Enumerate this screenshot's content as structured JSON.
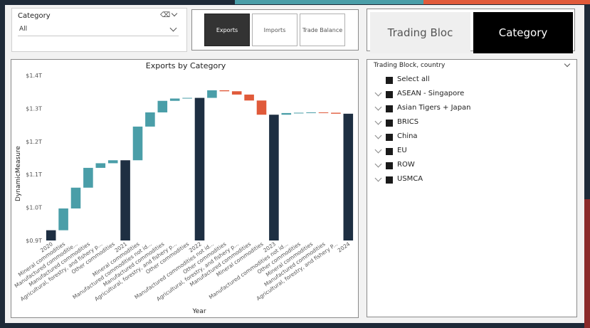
{
  "colors": {
    "total": "#1e2f42",
    "increase": "#4a9ea8",
    "decrease": "#e05a3a",
    "axis_text": "#555555"
  },
  "category_slicer": {
    "title": "Category",
    "value": "All"
  },
  "measure_buttons": [
    {
      "label": "Exports",
      "active": true
    },
    {
      "label": "Imports",
      "active": false
    },
    {
      "label": "Trade Balance",
      "active": false
    }
  ],
  "view_toggle": {
    "left_label": "Trading Bloc",
    "right_label": "Category"
  },
  "trade_tree": {
    "header": "Trading Block, country",
    "items": [
      {
        "label": "Select all",
        "expandable": false
      },
      {
        "label": "ASEAN - Singapore",
        "expandable": true
      },
      {
        "label": "Asian Tigers + Japan",
        "expandable": true
      },
      {
        "label": "BRICS",
        "expandable": true
      },
      {
        "label": "China",
        "expandable": true
      },
      {
        "label": "EU",
        "expandable": true
      },
      {
        "label": "ROW",
        "expandable": true
      },
      {
        "label": "USMCA",
        "expandable": true
      }
    ]
  },
  "chart_data": {
    "type": "bar",
    "subtype": "waterfall",
    "title": "Exports by Category",
    "xlabel": "Year",
    "ylabel": "DynamicMeasure",
    "ylim": [
      0.9,
      1.4
    ],
    "yticks": [
      0.9,
      1.0,
      1.1,
      1.2,
      1.3,
      1.4
    ],
    "ytick_labels": [
      "$0.9T",
      "$1.0T",
      "$1.1T",
      "$1.2T",
      "$1.3T",
      "$1.4T"
    ],
    "bars": [
      {
        "label": "2020",
        "kind": "total",
        "start": 0.9,
        "end": 0.931
      },
      {
        "label": "Mineral commodities",
        "kind": "increase",
        "start": 0.931,
        "end": 0.997
      },
      {
        "label": "Manufactured commoditie...",
        "kind": "increase",
        "start": 0.997,
        "end": 1.06
      },
      {
        "label": "Manufactured commodities",
        "kind": "increase",
        "start": 1.06,
        "end": 1.12
      },
      {
        "label": "Agricultural, forestry, and fishery p...",
        "kind": "increase",
        "start": 1.12,
        "end": 1.134
      },
      {
        "label": "Other commodities",
        "kind": "increase",
        "start": 1.134,
        "end": 1.143
      },
      {
        "label": "2021",
        "kind": "total",
        "start": 0.9,
        "end": 1.143
      },
      {
        "label": "Mineral commodities",
        "kind": "increase",
        "start": 1.143,
        "end": 1.245
      },
      {
        "label": "Manufactured commodities not id...",
        "kind": "increase",
        "start": 1.245,
        "end": 1.288
      },
      {
        "label": "Manufactured commodities",
        "kind": "increase",
        "start": 1.288,
        "end": 1.323
      },
      {
        "label": "Agricultural, forestry, and fishery p...",
        "kind": "increase",
        "start": 1.323,
        "end": 1.33
      },
      {
        "label": "Other commodities",
        "kind": "increase",
        "start": 1.33,
        "end": 1.332
      },
      {
        "label": "2022",
        "kind": "total",
        "start": 0.9,
        "end": 1.332
      },
      {
        "label": "Manufactured commodities not id...",
        "kind": "increase",
        "start": 1.332,
        "end": 1.355
      },
      {
        "label": "Other commodities",
        "kind": "decrease",
        "start": 1.355,
        "end": 1.352
      },
      {
        "label": "Agricultural, forestry, and fishery p...",
        "kind": "decrease",
        "start": 1.352,
        "end": 1.342
      },
      {
        "label": "Manufactured commodities",
        "kind": "decrease",
        "start": 1.342,
        "end": 1.324
      },
      {
        "label": "Mineral commodities",
        "kind": "decrease",
        "start": 1.324,
        "end": 1.281
      },
      {
        "label": "2023",
        "kind": "total",
        "start": 0.9,
        "end": 1.281
      },
      {
        "label": "Manufactured commodities not id...",
        "kind": "increase",
        "start": 1.281,
        "end": 1.286
      },
      {
        "label": "Other commodities",
        "kind": "increase",
        "start": 1.286,
        "end": 1.287
      },
      {
        "label": "Mineral commodities",
        "kind": "increase",
        "start": 1.287,
        "end": 1.288
      },
      {
        "label": "Manufactured commodities",
        "kind": "decrease",
        "start": 1.288,
        "end": 1.287
      },
      {
        "label": "Agricultural, forestry, and fishery P...",
        "kind": "decrease",
        "start": 1.287,
        "end": 1.284
      },
      {
        "label": "2024",
        "kind": "total",
        "start": 0.9,
        "end": 1.284
      }
    ]
  }
}
